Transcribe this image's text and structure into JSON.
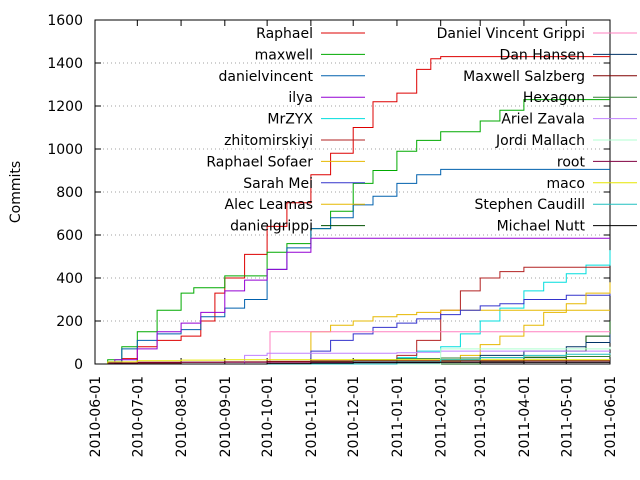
{
  "chart_data": {
    "type": "line",
    "ylabel": "Commits",
    "xlabel": "",
    "title": "",
    "ylim": [
      0,
      1600
    ],
    "xlim": [
      "2010-06-01",
      "2011-06-01"
    ],
    "grid": true,
    "legend_position": "top",
    "y_ticks": [
      "0",
      "200",
      "400",
      "600",
      "800",
      "1000",
      "1200",
      "1400",
      "1600"
    ],
    "x_ticks": [
      "2010-06-01",
      "2010-07-01",
      "2010-08-01",
      "2010-09-01",
      "2010-10-01",
      "2010-11-01",
      "2010-12-01",
      "2011-01-01",
      "2011-02-01",
      "2011-03-01",
      "2011-04-01",
      "2011-05-01",
      "2011-06-01"
    ],
    "series": [
      {
        "name": "Raphael",
        "color": "#dd0000",
        "x": [
          "2010-06-01",
          "2010-06-10",
          "2010-06-20",
          "2010-07-01",
          "2010-07-15",
          "2010-08-01",
          "2010-08-15",
          "2010-08-25",
          "2010-09-01",
          "2010-09-15",
          "2010-10-01",
          "2010-10-15",
          "2010-11-01",
          "2010-11-15",
          "2010-12-01",
          "2010-12-15",
          "2011-01-01",
          "2011-01-15",
          "2011-01-25",
          "2011-02-01",
          "2011-06-01"
        ],
        "y": [
          0,
          5,
          25,
          80,
          110,
          130,
          200,
          330,
          400,
          510,
          640,
          750,
          880,
          980,
          1100,
          1220,
          1260,
          1370,
          1420,
          1430,
          1430
        ]
      },
      {
        "name": "maxwell",
        "color": "#00aa00",
        "x": [
          "2010-06-01",
          "2010-06-10",
          "2010-06-20",
          "2010-07-01",
          "2010-07-15",
          "2010-08-01",
          "2010-08-10",
          "2010-09-01",
          "2010-10-01",
          "2010-10-15",
          "2010-11-01",
          "2010-11-15",
          "2010-12-01",
          "2010-12-15",
          "2011-01-01",
          "2011-01-15",
          "2011-02-01",
          "2011-03-01",
          "2011-03-15",
          "2011-04-01",
          "2011-06-01"
        ],
        "y": [
          0,
          20,
          80,
          150,
          250,
          330,
          355,
          410,
          520,
          560,
          630,
          710,
          840,
          900,
          990,
          1040,
          1080,
          1130,
          1180,
          1230,
          1230
        ]
      },
      {
        "name": "danielvincent",
        "color": "#0060ad",
        "x": [
          "2010-06-01",
          "2010-06-10",
          "2010-06-20",
          "2010-07-01",
          "2010-07-15",
          "2010-08-01",
          "2010-08-15",
          "2010-09-01",
          "2010-09-15",
          "2010-10-01",
          "2010-10-15",
          "2010-11-01",
          "2010-11-15",
          "2010-12-01",
          "2010-12-15",
          "2011-01-01",
          "2011-01-15",
          "2011-02-01",
          "2011-06-01"
        ],
        "y": [
          0,
          10,
          70,
          110,
          140,
          160,
          220,
          260,
          300,
          440,
          540,
          630,
          680,
          740,
          780,
          840,
          880,
          905,
          905
        ]
      },
      {
        "name": "ilya",
        "color": "#9400d3",
        "x": [
          "2010-06-01",
          "2010-06-15",
          "2010-07-01",
          "2010-07-15",
          "2010-08-01",
          "2010-08-15",
          "2010-09-01",
          "2010-09-15",
          "2010-10-01",
          "2010-10-15",
          "2010-11-01",
          "2011-06-01"
        ],
        "y": [
          0,
          20,
          70,
          150,
          190,
          240,
          340,
          390,
          440,
          520,
          585,
          585
        ]
      },
      {
        "name": "MrZYX",
        "color": "#00dddd",
        "x": [
          "2010-06-01",
          "2010-11-01",
          "2010-12-01",
          "2011-01-01",
          "2011-01-15",
          "2011-02-01",
          "2011-02-15",
          "2011-03-01",
          "2011-03-15",
          "2011-04-01",
          "2011-04-15",
          "2011-05-01",
          "2011-05-15",
          "2011-06-01"
        ],
        "y": [
          0,
          0,
          10,
          30,
          60,
          80,
          140,
          200,
          260,
          340,
          380,
          420,
          460,
          530
        ]
      },
      {
        "name": "zhitomirskiyi",
        "color": "#b22222",
        "x": [
          "2010-06-01",
          "2010-12-15",
          "2011-01-01",
          "2011-01-15",
          "2011-02-01",
          "2011-02-15",
          "2011-03-01",
          "2011-03-15",
          "2011-04-01",
          "2011-06-01"
        ],
        "y": [
          0,
          0,
          40,
          110,
          250,
          340,
          400,
          430,
          450,
          450
        ]
      },
      {
        "name": "Raphael Sofaer",
        "color": "#e6b800",
        "x": [
          "2010-06-01",
          "2010-10-15",
          "2010-11-01",
          "2010-11-15",
          "2010-12-01",
          "2010-12-15",
          "2011-01-01",
          "2011-01-15",
          "2011-02-01",
          "2011-06-01"
        ],
        "y": [
          0,
          0,
          150,
          180,
          200,
          220,
          230,
          240,
          250,
          250
        ]
      },
      {
        "name": "Sarah Mei",
        "color": "#3333cc",
        "x": [
          "2010-06-01",
          "2010-10-15",
          "2010-11-01",
          "2010-11-15",
          "2010-12-01",
          "2010-12-15",
          "2011-01-01",
          "2011-01-15",
          "2011-02-01",
          "2011-02-15",
          "2011-03-01",
          "2011-03-15",
          "2011-04-01",
          "2011-05-01",
          "2011-06-01"
        ],
        "y": [
          0,
          0,
          60,
          110,
          140,
          170,
          190,
          210,
          230,
          250,
          270,
          280,
          300,
          320,
          340
        ]
      },
      {
        "name": "Alec Leamas",
        "color": "#e6b800",
        "x": [
          "2010-06-01",
          "2011-01-15",
          "2011-02-01",
          "2011-02-15",
          "2011-03-01",
          "2011-03-15",
          "2011-04-01",
          "2011-04-15",
          "2011-05-01",
          "2011-05-15",
          "2011-06-01"
        ],
        "y": [
          0,
          0,
          10,
          40,
          90,
          130,
          180,
          240,
          280,
          330,
          380
        ]
      },
      {
        "name": "danielgrippi",
        "color": "#005000",
        "x": [
          "2010-06-01",
          "2011-02-01",
          "2011-03-01",
          "2011-04-01",
          "2011-05-01",
          "2011-05-15",
          "2011-06-01"
        ],
        "y": [
          0,
          0,
          10,
          30,
          60,
          130,
          200
        ]
      },
      {
        "name": "Daniel Vincent Grippi",
        "color": "#ff80c0",
        "x": [
          "2010-06-01",
          "2010-10-01",
          "2010-10-03",
          "2010-11-01",
          "2010-11-15",
          "2011-06-01"
        ],
        "y": [
          0,
          0,
          150,
          150,
          150,
          150
        ]
      },
      {
        "name": "Dan Hansen",
        "color": "#003366",
        "x": [
          "2010-06-01",
          "2010-12-01",
          "2011-01-01",
          "2011-02-01",
          "2011-03-01",
          "2011-04-01",
          "2011-05-01",
          "2011-05-15",
          "2011-06-01"
        ],
        "y": [
          0,
          0,
          5,
          20,
          40,
          60,
          80,
          100,
          140
        ]
      },
      {
        "name": "Maxwell Salzberg",
        "color": "#800000",
        "x": [
          "2010-06-01",
          "2010-06-15",
          "2010-07-01",
          "2010-08-01",
          "2010-09-01",
          "2010-10-01",
          "2010-11-01",
          "2010-12-01",
          "2011-06-01"
        ],
        "y": [
          0,
          3,
          5,
          8,
          10,
          12,
          14,
          15,
          15
        ]
      },
      {
        "name": "Hexagon",
        "color": "#338033",
        "x": [
          "2010-06-01",
          "2010-10-01",
          "2010-11-01",
          "2010-12-01",
          "2011-01-01",
          "2011-02-01",
          "2011-03-01",
          "2011-04-01",
          "2011-05-01",
          "2011-06-01"
        ],
        "y": [
          0,
          0,
          10,
          20,
          25,
          28,
          30,
          32,
          35,
          40
        ]
      },
      {
        "name": "Ariel Zavala",
        "color": "#c080ff",
        "x": [
          "2010-06-01",
          "2010-09-10",
          "2010-09-15",
          "2010-10-01",
          "2011-01-01",
          "2011-01-15",
          "2011-02-01",
          "2011-06-01"
        ],
        "y": [
          0,
          0,
          40,
          50,
          52,
          55,
          60,
          60
        ]
      },
      {
        "name": "Jordi Mallach",
        "color": "#b0ffd0",
        "x": [
          "2010-06-01",
          "2010-10-01",
          "2011-02-01",
          "2011-06-01"
        ],
        "y": [
          0,
          0,
          70,
          80
        ]
      },
      {
        "name": "root",
        "color": "#800040",
        "x": [
          "2010-06-01",
          "2010-06-10",
          "2010-07-01",
          "2011-06-01"
        ],
        "y": [
          0,
          5,
          8,
          8
        ]
      },
      {
        "name": "maco",
        "color": "#e6e600",
        "x": [
          "2010-06-01",
          "2010-06-10",
          "2010-07-01",
          "2010-08-01",
          "2010-09-01",
          "2011-06-01"
        ],
        "y": [
          0,
          10,
          15,
          18,
          20,
          20
        ]
      },
      {
        "name": "Stephen Caudill",
        "color": "#20c0c0",
        "x": [
          "2010-06-01",
          "2010-12-01",
          "2011-01-01",
          "2011-02-01",
          "2011-03-01",
          "2011-04-01",
          "2011-05-01",
          "2011-06-01"
        ],
        "y": [
          0,
          0,
          10,
          20,
          30,
          40,
          45,
          50
        ]
      },
      {
        "name": "Michael Nutt",
        "color": "#000000",
        "x": [
          "2010-06-01",
          "2010-09-01",
          "2010-10-01",
          "2010-11-01",
          "2010-12-01",
          "2011-01-01",
          "2011-06-01"
        ],
        "y": [
          0,
          0,
          2,
          4,
          6,
          8,
          10
        ]
      }
    ]
  }
}
